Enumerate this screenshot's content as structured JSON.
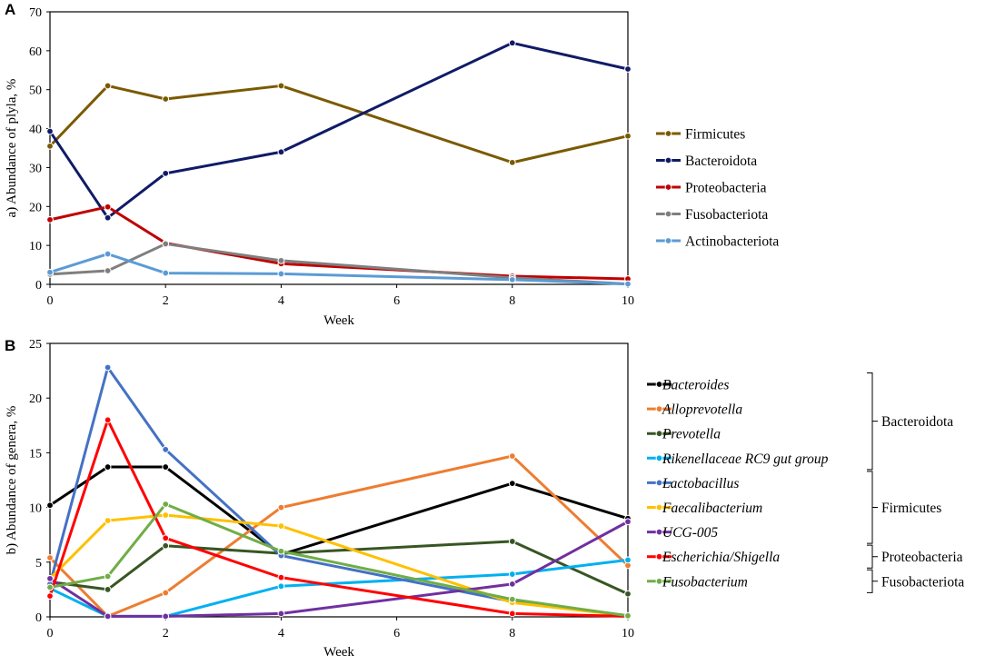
{
  "chart_data": [
    {
      "panel": "A",
      "type": "line",
      "title": "",
      "xlabel": "Week",
      "ylabel": "a) Abundance of plyla, %",
      "x": [
        0,
        1,
        2,
        4,
        8,
        10
      ],
      "xticks": [
        "0",
        "2",
        "4",
        "6",
        "8",
        "10"
      ],
      "xlim": [
        0,
        10
      ],
      "ylim": [
        0,
        70
      ],
      "yticks": [
        "0",
        "10",
        "20",
        "30",
        "40",
        "50",
        "60",
        "70"
      ],
      "grid": false,
      "legend_position": "right",
      "series": [
        {
          "name": "Firmicutes",
          "color": "#7a5a00",
          "values": [
            35.5,
            51,
            47.6,
            51,
            31.3,
            38.1
          ]
        },
        {
          "name": "Bacteroidota",
          "color": "#101b66",
          "values": [
            39.3,
            17.1,
            28.5,
            34,
            62,
            55.3
          ]
        },
        {
          "name": "Proteobacteria",
          "color": "#c00000",
          "values": [
            16.6,
            19.9,
            10.6,
            5.3,
            2.1,
            1.4
          ]
        },
        {
          "name": "Fusobacteriota",
          "color": "#7f7f7f",
          "values": [
            2.6,
            3.5,
            10.4,
            6.1,
            1.7,
            0.1
          ]
        },
        {
          "name": "Actinobacteriota",
          "color": "#5b9bd5",
          "values": [
            3.1,
            7.8,
            2.9,
            2.7,
            1.2,
            0.1
          ]
        }
      ]
    },
    {
      "panel": "B",
      "type": "line",
      "title": "",
      "xlabel": "Week",
      "ylabel": "b) Abundance of genera, %",
      "x": [
        0,
        1,
        2,
        4,
        8,
        10
      ],
      "xticks": [
        "0",
        "2",
        "4",
        "6",
        "8",
        "10"
      ],
      "xlim": [
        0,
        10
      ],
      "ylim": [
        0,
        25
      ],
      "yticks": [
        "0",
        "5",
        "10",
        "15",
        "20",
        "25"
      ],
      "grid": false,
      "legend_position": "right",
      "series": [
        {
          "name": "Bacteroides",
          "color": "#000000",
          "values": [
            10.2,
            13.7,
            13.7,
            5.7,
            12.2,
            9.0
          ]
        },
        {
          "name": "Alloprevotella",
          "color": "#ed7d31",
          "values": [
            5.4,
            0.05,
            2.2,
            10.0,
            14.7,
            4.7
          ]
        },
        {
          "name": "Prevotella",
          "color": "#375623",
          "values": [
            3.2,
            2.5,
            6.5,
            5.8,
            6.9,
            2.1
          ]
        },
        {
          "name": "Rikenellaceae RC9 gut group",
          "color": "#00b0f0",
          "values": [
            2.6,
            0.05,
            0.05,
            2.8,
            3.9,
            5.2
          ]
        },
        {
          "name": "Lactobacillus",
          "color": "#4472c4",
          "values": [
            3.0,
            22.8,
            15.3,
            5.6,
            1.4,
            0.1
          ]
        },
        {
          "name": "Faecalibacterium",
          "color": "#ffc000",
          "values": [
            3.5,
            8.8,
            9.3,
            8.3,
            1.3,
            0.1
          ]
        },
        {
          "name": "UCG-005",
          "color": "#7030a0",
          "values": [
            3.5,
            0.05,
            0.05,
            0.3,
            3.0,
            8.7
          ]
        },
        {
          "name": "Escherichia/Shigella",
          "color": "#ff0000",
          "values": [
            1.9,
            18.0,
            7.2,
            3.6,
            0.3,
            0.05
          ]
        },
        {
          "name": "Fusobacterium",
          "color": "#70ad47",
          "values": [
            2.7,
            3.7,
            10.3,
            6.0,
            1.6,
            0.1
          ]
        }
      ],
      "groups": [
        {
          "name": "Bacteroidota",
          "members": [
            "Bacteroides",
            "Alloprevotella",
            "Prevotella",
            "Rikenellaceae RC9 gut group"
          ]
        },
        {
          "name": "Firmicutes",
          "members": [
            "Lactobacillus",
            "Faecalibacterium",
            "UCG-005"
          ]
        },
        {
          "name": "Proteobacteria",
          "members": [
            "Escherichia/Shigella"
          ]
        },
        {
          "name": "Fusobacteriota",
          "members": [
            "Fusobacterium"
          ]
        }
      ]
    }
  ]
}
